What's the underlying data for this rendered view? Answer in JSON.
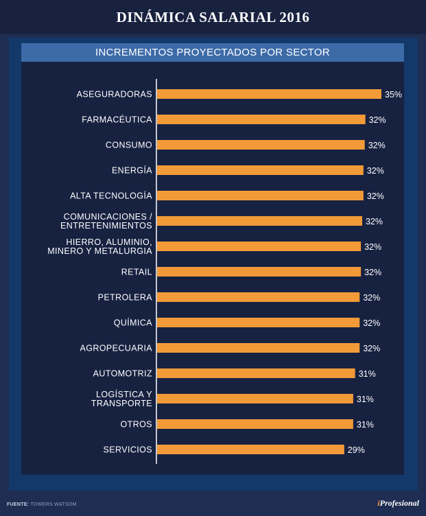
{
  "header": {
    "title": "DINÁMICA SALARIAL 2016",
    "subtitle": "INCREMENTOS PROYECTADOS POR SECTOR"
  },
  "footer": {
    "source_label": "FUENTE:",
    "source_value": "TOWERS WATSOM",
    "logo_prefix": "i",
    "logo_rest": "Profesional"
  },
  "colors": {
    "bar": "#f29a38",
    "label": "#ffffff",
    "axis": "#ffffff"
  },
  "chart_data": {
    "type": "bar",
    "orientation": "horizontal",
    "title": "INCREMENTOS PROYECTADOS POR SECTOR",
    "xlabel": "",
    "ylabel": "",
    "xlim": [
      0,
      35
    ],
    "grid": false,
    "legend": "none",
    "categories": [
      [
        "ASEGURADORAS"
      ],
      [
        "FARMACÉUTICA"
      ],
      [
        "CONSUMO"
      ],
      [
        "ENERGÍA"
      ],
      [
        "ALTA TECNOLOGÍA"
      ],
      [
        "COMUNICACIONES /",
        "ENTRETENIMIENTOS"
      ],
      [
        "HIERRO, ALUMINIO,",
        "MINERO Y METALURGIA"
      ],
      [
        "RETAIL"
      ],
      [
        "PETROLERA"
      ],
      [
        "QUÍMICA"
      ],
      [
        "AGROPECUARIA"
      ],
      [
        "AUTOMOTRIZ"
      ],
      [
        "LOGÍSTICA Y",
        "TRANSPORTE"
      ],
      [
        "OTROS"
      ],
      [
        "SERVICIOS"
      ]
    ],
    "values": [
      35,
      32.5,
      32.4,
      32.2,
      32.2,
      32.0,
      31.8,
      31.8,
      31.6,
      31.6,
      31.6,
      30.9,
      30.6,
      30.6,
      29.2
    ],
    "data_labels": [
      "35%",
      "32%",
      "32%",
      "32%",
      "32%",
      "32%",
      "32%",
      "32%",
      "32%",
      "32%",
      "32%",
      "31%",
      "31%",
      "31%",
      "29%"
    ]
  }
}
